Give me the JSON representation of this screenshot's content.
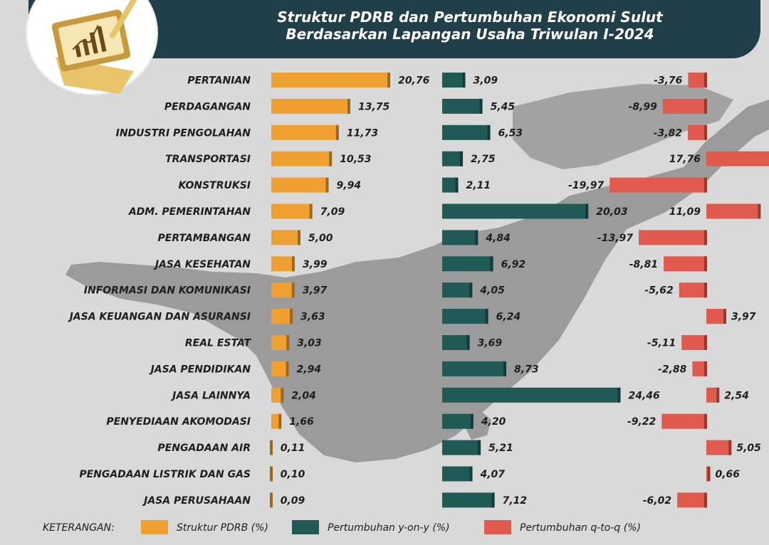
{
  "title_line1": "Struktur PDRB dan Pertumbuhan Ekonomi Sulut",
  "title_line2": "Berdasarkan Lapangan Usaha Triwulan I-2024",
  "logo_icon": "chart-tablet-icon",
  "colors": {
    "struktur": "#f0a030",
    "yoy": "#1f5a57",
    "qtq": "#e05a4e",
    "header": "#213f49"
  },
  "chart_data": {
    "type": "bar",
    "orientation": "horizontal",
    "categories": [
      "PERTANIAN",
      "PERDAGANGAN",
      "INDUSTRI PENGOLAHAN",
      "TRANSPORTASI",
      "KONSTRUKSI",
      "ADM. PEMERINTAHAN",
      "PERTAMBANGAN",
      "JASA KESEHATAN",
      "INFORMASI DAN KOMUNIKASI",
      "JASA KEUANGAN DAN ASURANSI",
      "REAL ESTAT",
      "JASA PENDIDIKAN",
      "JASA LAINNYA",
      "PENYEDIAAN AKOMODASI",
      "PENGADAAN AIR",
      "PENGADAAN LISTRIK DAN GAS",
      "JASA PERUSAHAAN"
    ],
    "series": [
      {
        "name": "Struktur PDRB (%)",
        "values": [
          20.76,
          13.75,
          11.73,
          10.53,
          9.94,
          7.09,
          5.0,
          3.99,
          3.97,
          3.63,
          3.03,
          2.94,
          2.04,
          1.66,
          0.11,
          0.1,
          0.09
        ],
        "labels": [
          "20,76",
          "13,75",
          "11,73",
          "10,53",
          "9,94",
          "7,09",
          "5,00",
          "3,99",
          "3,97",
          "3,63",
          "3,03",
          "2,94",
          "2,04",
          "1,66",
          "0,11",
          "0,10",
          "0,09"
        ]
      },
      {
        "name": "Pertumbuhan y-on-y (%)",
        "values": [
          3.09,
          5.45,
          6.53,
          2.75,
          2.11,
          20.03,
          4.84,
          6.92,
          4.05,
          6.24,
          3.69,
          8.73,
          24.46,
          4.2,
          5.21,
          4.07,
          7.12
        ],
        "labels": [
          "3,09",
          "5,45",
          "6,53",
          "2,75",
          "2,11",
          "20,03",
          "4,84",
          "6,92",
          "4,05",
          "6,24",
          "3,69",
          "8,73",
          "24,46",
          "4,20",
          "5,21",
          "4,07",
          "7,12"
        ]
      },
      {
        "name": "Pertumbuhan q-to-q (%)",
        "values": [
          -3.76,
          -8.99,
          -3.82,
          17.76,
          -19.97,
          11.09,
          -13.97,
          -8.81,
          -5.62,
          3.97,
          -5.11,
          -2.88,
          2.54,
          -9.22,
          5.05,
          0.66,
          -6.02
        ],
        "labels": [
          "-3,76",
          "-8,99",
          "-3,82",
          "17,76",
          "-19,97",
          "11,09",
          "-13,97",
          "-8,81",
          "-5,62",
          "3,97",
          "-5,11",
          "-2,88",
          "2,54",
          "-9,22",
          "5,05",
          "0,66",
          "-6,02"
        ]
      }
    ],
    "legend": {
      "title": "KETERANGAN:",
      "items": [
        "Struktur PDRB (%)",
        "Pertumbuhan y-on-y (%)",
        "Pertumbuhan q-to-q (%)"
      ],
      "placement": "bottom"
    }
  }
}
